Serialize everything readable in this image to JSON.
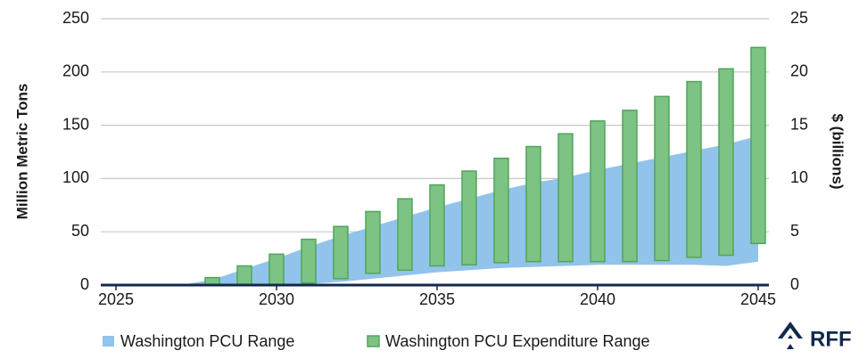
{
  "chart_data": {
    "type": "combo",
    "ylabel": "Million Metric Tons",
    "y2label": "$ (billions)",
    "xlim": [
      2025,
      2045
    ],
    "xticks": [
      2025,
      2030,
      2035,
      2040,
      2045
    ],
    "ylim": [
      0,
      250
    ],
    "yticks": [
      0,
      50,
      100,
      150,
      200,
      250
    ],
    "y2lim": [
      0,
      25
    ],
    "y2ticks": [
      0,
      5,
      10,
      15,
      20,
      25
    ],
    "grid": true,
    "legend": "bottom",
    "logo": "RFF",
    "series": [
      {
        "name": "Washington PCU Range",
        "type": "area",
        "color": "#92c3ea",
        "axis": "y",
        "x": [
          2027,
          2028,
          2029,
          2030,
          2031,
          2032,
          2033,
          2034,
          2035,
          2036,
          2037,
          2038,
          2039,
          2040,
          2041,
          2042,
          2043,
          2044,
          2045
        ],
        "low": [
          0,
          0,
          0,
          0,
          1,
          3,
          6,
          9,
          12,
          14,
          16,
          17,
          18,
          19,
          19,
          19,
          19,
          18,
          22
        ],
        "high": [
          0,
          5,
          15,
          25,
          36,
          46,
          55,
          64,
          73,
          81,
          89,
          96,
          101,
          108,
          114,
          120,
          126,
          132,
          140
        ]
      },
      {
        "name": "Washington PCU Expenditure Range",
        "type": "bar",
        "color": "#7dc383",
        "axis": "y2",
        "x": [
          2028,
          2029,
          2030,
          2031,
          2032,
          2033,
          2034,
          2035,
          2036,
          2037,
          2038,
          2039,
          2040,
          2041,
          2042,
          2043,
          2044,
          2045
        ],
        "low": [
          0,
          0,
          0,
          0.2,
          0.6,
          1.1,
          1.4,
          1.8,
          1.9,
          2.1,
          2.2,
          2.2,
          2.2,
          2.2,
          2.3,
          2.6,
          2.8,
          3.9
        ],
        "high": [
          0.7,
          1.8,
          2.9,
          4.3,
          5.5,
          6.9,
          8.1,
          9.4,
          10.7,
          11.9,
          13.0,
          14.2,
          15.4,
          16.4,
          17.7,
          19.1,
          20.3,
          22.3
        ]
      }
    ]
  }
}
